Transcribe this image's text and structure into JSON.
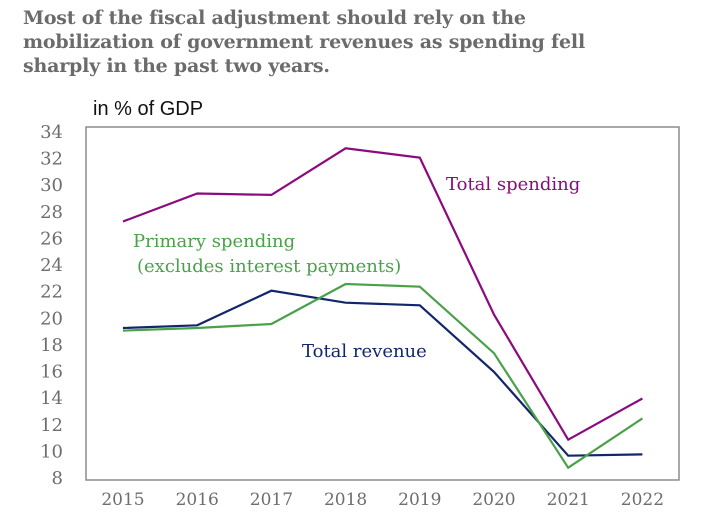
{
  "title_lines": [
    "Most of the fiscal adjustment should rely on the",
    "mobilization of government revenues as spending fell",
    "sharply in the past two years."
  ],
  "chart_data": {
    "type": "line",
    "title": "Most of the fiscal adjustment should rely on the mobilization of government revenues as spending fell sharply in the past two years.",
    "ylabel": "in % of GDP",
    "xlabel": "",
    "x": [
      "2015",
      "2016",
      "2017",
      "2018",
      "2019",
      "2020",
      "2021",
      "2022"
    ],
    "ylim": [
      8,
      34
    ],
    "yticks": [
      8,
      10,
      12,
      14,
      16,
      18,
      20,
      22,
      24,
      26,
      28,
      30,
      32,
      34
    ],
    "grid": false,
    "legend": "inline labels",
    "series": [
      {
        "name": "Total spending",
        "label": "Total spending",
        "color": "#8b0a7e",
        "values": [
          27.2,
          29.3,
          29.2,
          32.7,
          32.0,
          20.2,
          10.8,
          13.9
        ]
      },
      {
        "name": "Primary spending",
        "label": [
          "Primary spending",
          "(excludes interest payments)"
        ],
        "color": "#4aa14a",
        "values": [
          19.0,
          19.2,
          19.5,
          22.5,
          22.3,
          17.3,
          8.7,
          12.4
        ]
      },
      {
        "name": "Total revenue",
        "label": "Total revenue",
        "color": "#12266b",
        "values": [
          19.2,
          19.4,
          22.0,
          21.1,
          20.9,
          15.9,
          9.6,
          9.7
        ]
      }
    ]
  }
}
